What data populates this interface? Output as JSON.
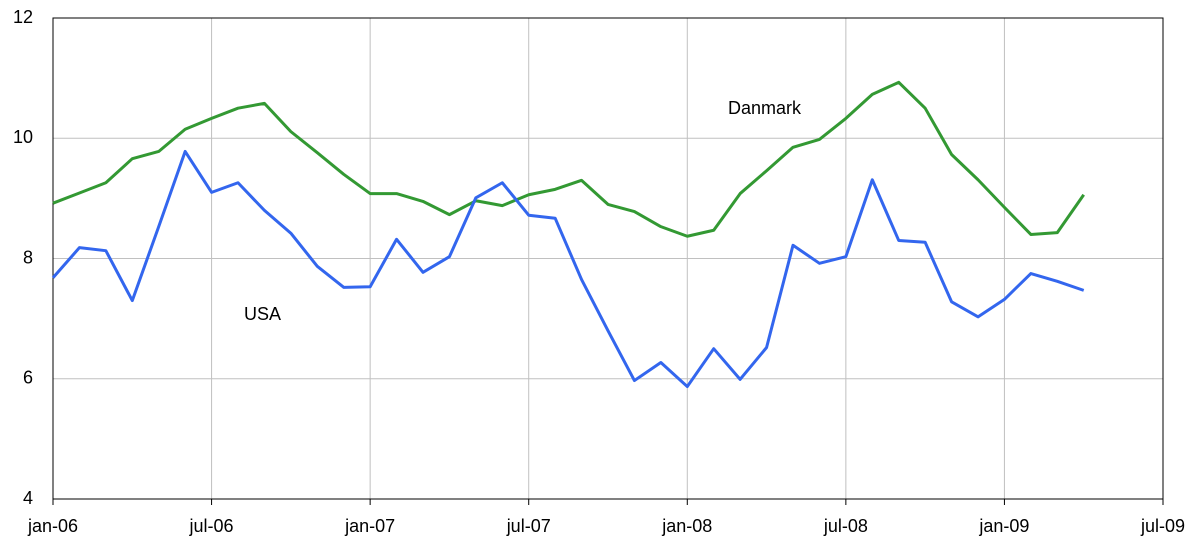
{
  "chart_data": {
    "type": "line",
    "categories": [
      "jan-06",
      null,
      null,
      null,
      null,
      null,
      "jul-06",
      null,
      null,
      null,
      null,
      null,
      "jan-07",
      null,
      null,
      null,
      null,
      null,
      "jul-07",
      null,
      null,
      null,
      null,
      null,
      "jan-08",
      null,
      null,
      null,
      null,
      null,
      "jul-08",
      null,
      null,
      null,
      null,
      null,
      "jan-09",
      null,
      null,
      null,
      null,
      null,
      "jul-09"
    ],
    "series": [
      {
        "name": "Danmark",
        "color": "#339933",
        "values": [
          8.92,
          9.09,
          9.26,
          9.66,
          9.78,
          10.15,
          10.33,
          10.5,
          10.58,
          10.11,
          9.76,
          9.4,
          9.08,
          9.08,
          8.95,
          8.73,
          8.96,
          8.88,
          9.06,
          9.15,
          9.3,
          8.9,
          8.78,
          8.53,
          8.37,
          8.47,
          9.08,
          9.46,
          9.85,
          9.98,
          10.33,
          10.73,
          10.93,
          10.5,
          9.73,
          9.31,
          8.85,
          8.4,
          8.43,
          9.06,
          null,
          null,
          null
        ]
      },
      {
        "name": "USA",
        "color": "#3366ee",
        "values": [
          7.68,
          8.18,
          8.13,
          7.3,
          8.53,
          9.78,
          9.1,
          9.26,
          8.8,
          8.42,
          7.87,
          7.52,
          7.53,
          8.32,
          7.77,
          8.03,
          9.01,
          9.26,
          8.72,
          8.67,
          7.65,
          6.8,
          5.97,
          6.27,
          5.87,
          6.5,
          5.99,
          6.52,
          8.22,
          7.92,
          8.03,
          9.31,
          8.3,
          8.27,
          7.28,
          7.03,
          7.32,
          7.75,
          7.62,
          7.47,
          null,
          null,
          null
        ]
      }
    ],
    "ylim": [
      4,
      12
    ],
    "yticks": [
      4,
      6,
      8,
      10,
      12
    ],
    "grid": true
  }
}
